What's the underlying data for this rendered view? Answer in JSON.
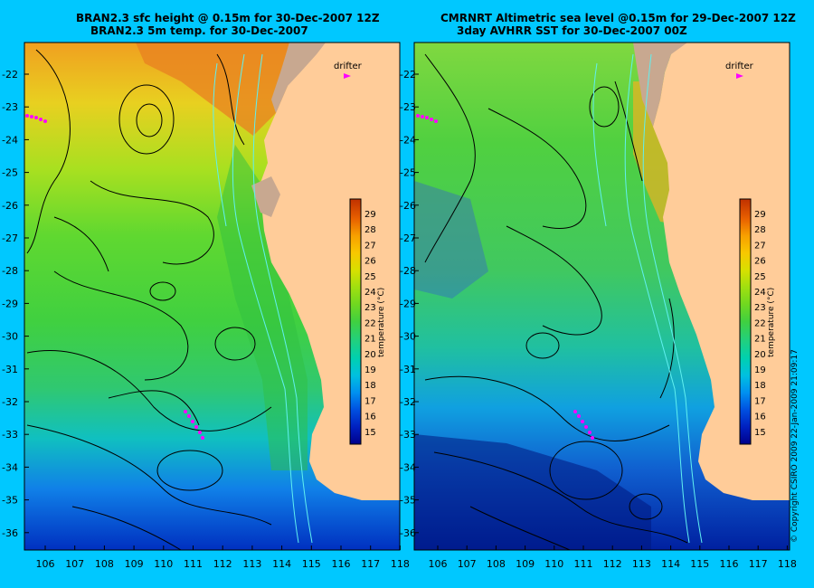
{
  "panels": [
    {
      "title_line1": "BRAN2.3 sfc height @ 0.15m for 30-Dec-2007 12Z",
      "title_line2": "BRAN2.3 5m temp. for 30-Dec-2007",
      "drifter_label": "drifter",
      "lat_labels": [
        "-22",
        "-23",
        "-24",
        "-25",
        "-26",
        "-27",
        "-28",
        "-29",
        "-30",
        "-31",
        "-32",
        "-33",
        "-34",
        "-35",
        "-36"
      ],
      "lon_labels": [
        "106",
        "107",
        "108",
        "109",
        "110",
        "111",
        "112",
        "113",
        "114",
        "115",
        "116",
        "117",
        "118"
      ],
      "colorbar_ticks": [
        "29",
        "28",
        "27",
        "26",
        "25",
        "24",
        "23",
        "22",
        "21",
        "20",
        "19",
        "18",
        "17",
        "16",
        "15"
      ],
      "colorbar_label": "temperature (°C)"
    },
    {
      "title_line1": "CMRNRT Altimetric sea level  @0.15m  for 29-Dec-2007 12Z",
      "title_line2": "3day AVHRR SST for 30-Dec-2007 00Z",
      "drifter_label": "drifter",
      "lat_labels": [
        "-22",
        "-23",
        "-24",
        "-25",
        "-26",
        "-27",
        "-28",
        "-29",
        "-30",
        "-31",
        "-32",
        "-33",
        "-34",
        "-35",
        "-36"
      ],
      "lon_labels": [
        "106",
        "107",
        "108",
        "109",
        "110",
        "111",
        "112",
        "113",
        "114",
        "115",
        "116",
        "117",
        "118"
      ],
      "colorbar_ticks": [
        "29",
        "28",
        "27",
        "26",
        "25",
        "24",
        "23",
        "22",
        "21",
        "20",
        "19",
        "18",
        "17",
        "16",
        "15"
      ],
      "colorbar_label": "temperature (°C)"
    }
  ],
  "copyright": "© Copyright CSIRO 2009   22-Jan-2009 21:09:17",
  "colors": {
    "background": "#00c8ff",
    "land": "#ffcc99",
    "colorbar": [
      "#00008b",
      "#0020c0",
      "#0050e0",
      "#0090f0",
      "#00c0e0",
      "#00d0b0",
      "#20d080",
      "#40d040",
      "#70d820",
      "#a0e010",
      "#d8e000",
      "#f8c800",
      "#f8a000",
      "#e86000",
      "#c03000"
    ]
  }
}
